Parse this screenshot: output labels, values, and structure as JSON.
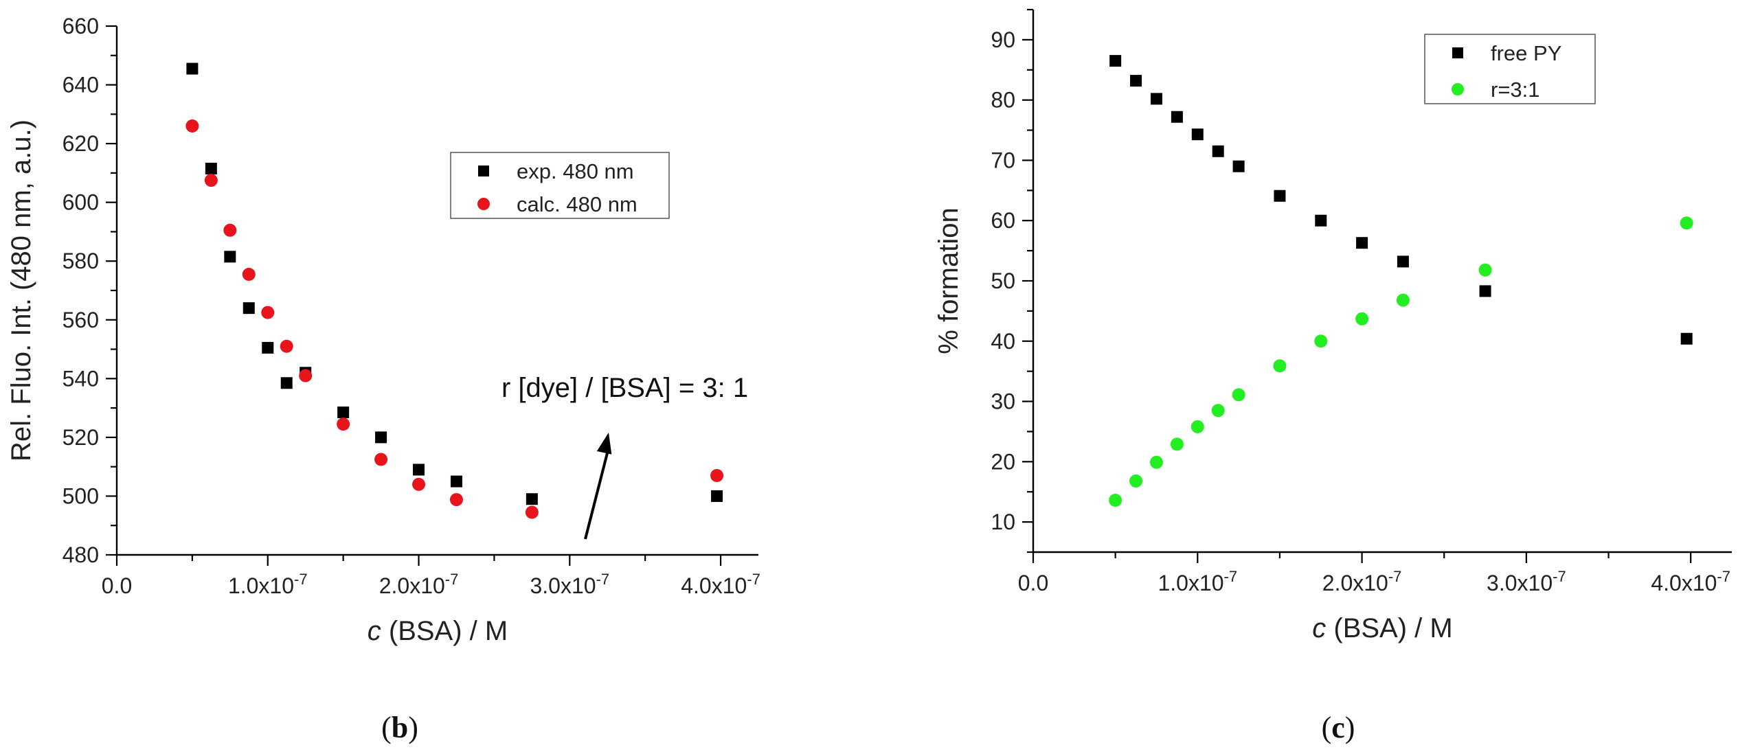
{
  "chart_data": [
    {
      "type": "scatter",
      "panel_label": "(b)",
      "panel_letter": "b",
      "xlabel_italic": "c",
      "xlabel_rest": " (BSA) / M",
      "ylabel": "Rel. Fluo. Int. (480 nm, a.u.)",
      "xlim": [
        0,
        4.25e-07
      ],
      "ylim": [
        480,
        660
      ],
      "xticks": [
        0,
        1e-07,
        2e-07,
        3e-07,
        4e-07
      ],
      "xtick_labels": [
        "0.0",
        "1.0x10-7",
        "2.0x10-7",
        "3.0x10-7",
        "4.0x10-7"
      ],
      "yticks": [
        480,
        500,
        520,
        540,
        560,
        580,
        600,
        620,
        640,
        660
      ],
      "ytick_labels": [
        "480",
        "500",
        "520",
        "540",
        "560",
        "580",
        "600",
        "620",
        "640",
        "660"
      ],
      "legend_position": "upper-right",
      "annotation": "r [dye] / [BSA] = 3: 1",
      "series": [
        {
          "name": "exp. 480 nm",
          "marker": "square",
          "color": "#000000",
          "x": [
            5e-08,
            6.25e-08,
            7.5e-08,
            8.75e-08,
            1e-07,
            1.125e-07,
            1.25e-07,
            1.5e-07,
            1.75e-07,
            2e-07,
            2.25e-07,
            2.75e-07,
            3.975e-07
          ],
          "y": [
            645.5,
            611.5,
            581.5,
            564,
            550.5,
            538.5,
            542,
            528.5,
            520,
            509,
            505,
            499,
            500
          ]
        },
        {
          "name": "calc. 480 nm",
          "marker": "circle",
          "color": "#e8141c",
          "x": [
            5e-08,
            6.25e-08,
            7.5e-08,
            8.75e-08,
            1e-07,
            1.125e-07,
            1.25e-07,
            1.5e-07,
            1.75e-07,
            2e-07,
            2.25e-07,
            2.75e-07,
            3.975e-07
          ],
          "y": [
            626,
            607.5,
            590.5,
            575.5,
            562.5,
            551,
            541,
            524.5,
            512.5,
            504,
            498.8,
            494.5,
            507
          ]
        }
      ]
    },
    {
      "type": "scatter",
      "panel_label": "(c)",
      "panel_letter": "c",
      "xlabel_italic": "c",
      "xlabel_rest": " (BSA) / M",
      "ylabel": "% formation",
      "xlim": [
        0,
        4.25e-07
      ],
      "ylim": [
        5,
        95
      ],
      "xticks": [
        0,
        1e-07,
        2e-07,
        3e-07,
        4e-07
      ],
      "xtick_labels": [
        "0.0",
        "1.0x10-7",
        "2.0x10-7",
        "3.0x10-7",
        "4.0x10-7"
      ],
      "yticks": [
        10,
        20,
        30,
        40,
        50,
        60,
        70,
        80,
        90
      ],
      "ytick_labels": [
        "10",
        "20",
        "30",
        "40",
        "50",
        "60",
        "70",
        "80",
        "90"
      ],
      "legend_position": "top-center-right",
      "series": [
        {
          "name": "free PY",
          "marker": "square",
          "color": "#000000",
          "x": [
            5e-08,
            6.25e-08,
            7.5e-08,
            8.75e-08,
            1e-07,
            1.125e-07,
            1.25e-07,
            1.5e-07,
            1.75e-07,
            2e-07,
            2.25e-07,
            2.75e-07,
            3.975e-07
          ],
          "y": [
            86.5,
            83.2,
            80.2,
            77.2,
            74.3,
            71.5,
            69,
            64.1,
            60,
            56.3,
            53.2,
            48.3,
            40.4
          ]
        },
        {
          "name": "r=3:1",
          "marker": "circle",
          "color": "#22ee22",
          "x": [
            5e-08,
            6.25e-08,
            7.5e-08,
            8.75e-08,
            1e-07,
            1.125e-07,
            1.25e-07,
            1.5e-07,
            1.75e-07,
            2e-07,
            2.25e-07,
            2.75e-07,
            3.975e-07
          ],
          "y": [
            13.6,
            16.8,
            19.9,
            22.9,
            25.8,
            28.5,
            31.1,
            35.9,
            40,
            43.7,
            46.8,
            51.8,
            59.6
          ]
        }
      ]
    }
  ]
}
